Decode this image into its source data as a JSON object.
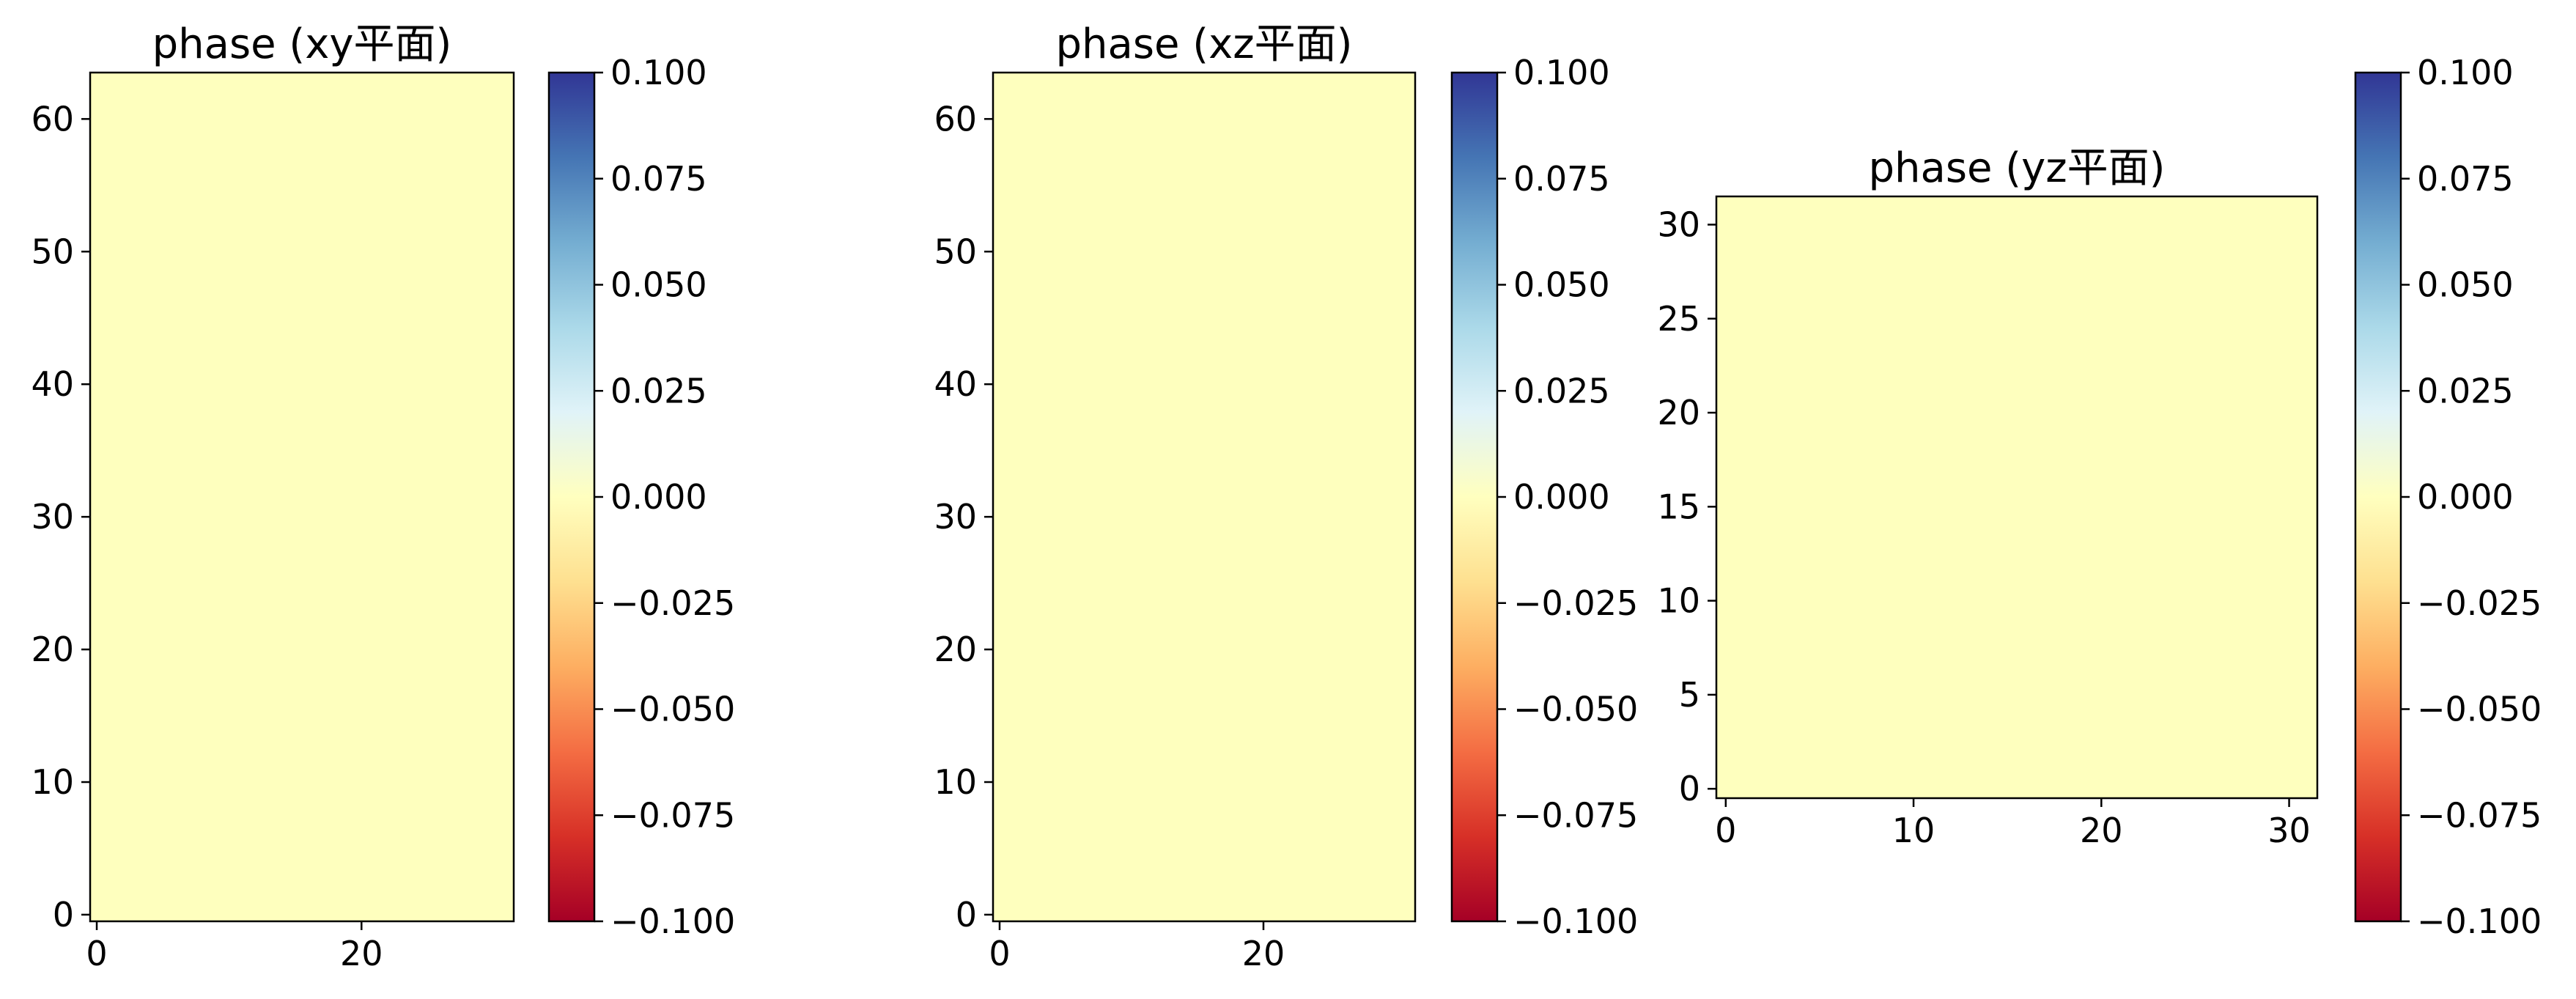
{
  "chart_data": [
    {
      "type": "heatmap",
      "title": "phase (xy平面)",
      "xlabel": "",
      "ylabel": "",
      "x_ticks": [
        0,
        20
      ],
      "y_ticks": [
        0,
        10,
        20,
        30,
        40,
        50,
        60
      ],
      "xlim": [
        -0.5,
        31.5
      ],
      "ylim": [
        -0.5,
        63.5
      ],
      "grid": false,
      "fill_value": 0.0,
      "fill_color": "#feffbe",
      "colorbar": {
        "cmap": "RdYlBu",
        "ticks": [
          "−0.100",
          "−0.075",
          "−0.050",
          "−0.025",
          "0.000",
          "0.025",
          "0.050",
          "0.075",
          "0.100"
        ],
        "range": [
          -0.1,
          0.1
        ]
      }
    },
    {
      "type": "heatmap",
      "title": "phase (xz平面)",
      "xlabel": "",
      "ylabel": "",
      "x_ticks": [
        0,
        20
      ],
      "y_ticks": [
        0,
        10,
        20,
        30,
        40,
        50,
        60
      ],
      "xlim": [
        -0.5,
        31.5
      ],
      "ylim": [
        -0.5,
        63.5
      ],
      "grid": false,
      "fill_value": 0.0,
      "fill_color": "#feffbe",
      "colorbar": {
        "cmap": "RdYlBu",
        "ticks": [
          "−0.100",
          "−0.075",
          "−0.050",
          "−0.025",
          "0.000",
          "0.025",
          "0.050",
          "0.075",
          "0.100"
        ],
        "range": [
          -0.1,
          0.1
        ]
      }
    },
    {
      "type": "heatmap",
      "title": "phase (yz平面)",
      "xlabel": "",
      "ylabel": "",
      "x_ticks": [
        0,
        10,
        20,
        30
      ],
      "y_ticks": [
        0,
        5,
        10,
        15,
        20,
        25,
        30
      ],
      "xlim": [
        -0.5,
        31.5
      ],
      "ylim": [
        -0.5,
        31.5
      ],
      "grid": false,
      "fill_value": 0.0,
      "fill_color": "#feffbe",
      "colorbar": {
        "cmap": "RdYlBu",
        "ticks": [
          "−0.100",
          "−0.075",
          "−0.050",
          "−0.025",
          "0.000",
          "0.025",
          "0.050",
          "0.075",
          "0.100"
        ],
        "range": [
          -0.1,
          0.1
        ]
      }
    }
  ]
}
